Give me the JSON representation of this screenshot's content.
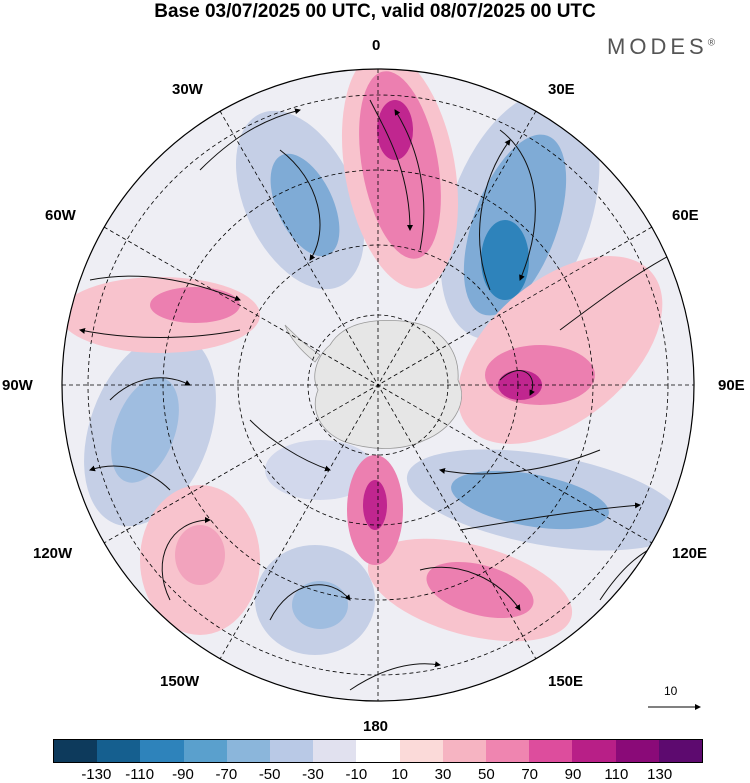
{
  "title": "Base 03/07/2025 00 UTC, valid 08/07/2025 00 UTC",
  "brand": "MODES",
  "brand_mark": "®",
  "longitude_labels": {
    "n0": "0",
    "n30e": "30E",
    "n60e": "60E",
    "n90e": "90E",
    "n120e": "120E",
    "n150e": "150E",
    "n180": "180",
    "n150w": "150W",
    "n120w": "120W",
    "n90w": "90W",
    "n60w": "60W",
    "n30w": "30W"
  },
  "vector_reference": {
    "label": "10"
  },
  "colorbar": {
    "colors": [
      "#0d3a5c",
      "#155f8f",
      "#2e83bb",
      "#5aa0cd",
      "#8bb6db",
      "#b9c9e6",
      "#e1e1ef",
      "#ffffff",
      "#fbdad9",
      "#f6b4c2",
      "#ef85b0",
      "#dd4d9d",
      "#b81f87",
      "#8a0a78",
      "#5d0a6f"
    ],
    "ticks": [
      "-130",
      "-110",
      "-90",
      "-70",
      "-50",
      "-30",
      "-10",
      "10",
      "30",
      "50",
      "70",
      "90",
      "110",
      "130"
    ]
  },
  "anomaly_colors": {
    "positive_strong": "#c0268f",
    "positive_mid": "#ec7fb0",
    "positive_weak": "#f8c3cd",
    "negative_strong": "#2e83bb",
    "negative_mid": "#7fabd6",
    "negative_weak": "#c5cfe6"
  }
}
